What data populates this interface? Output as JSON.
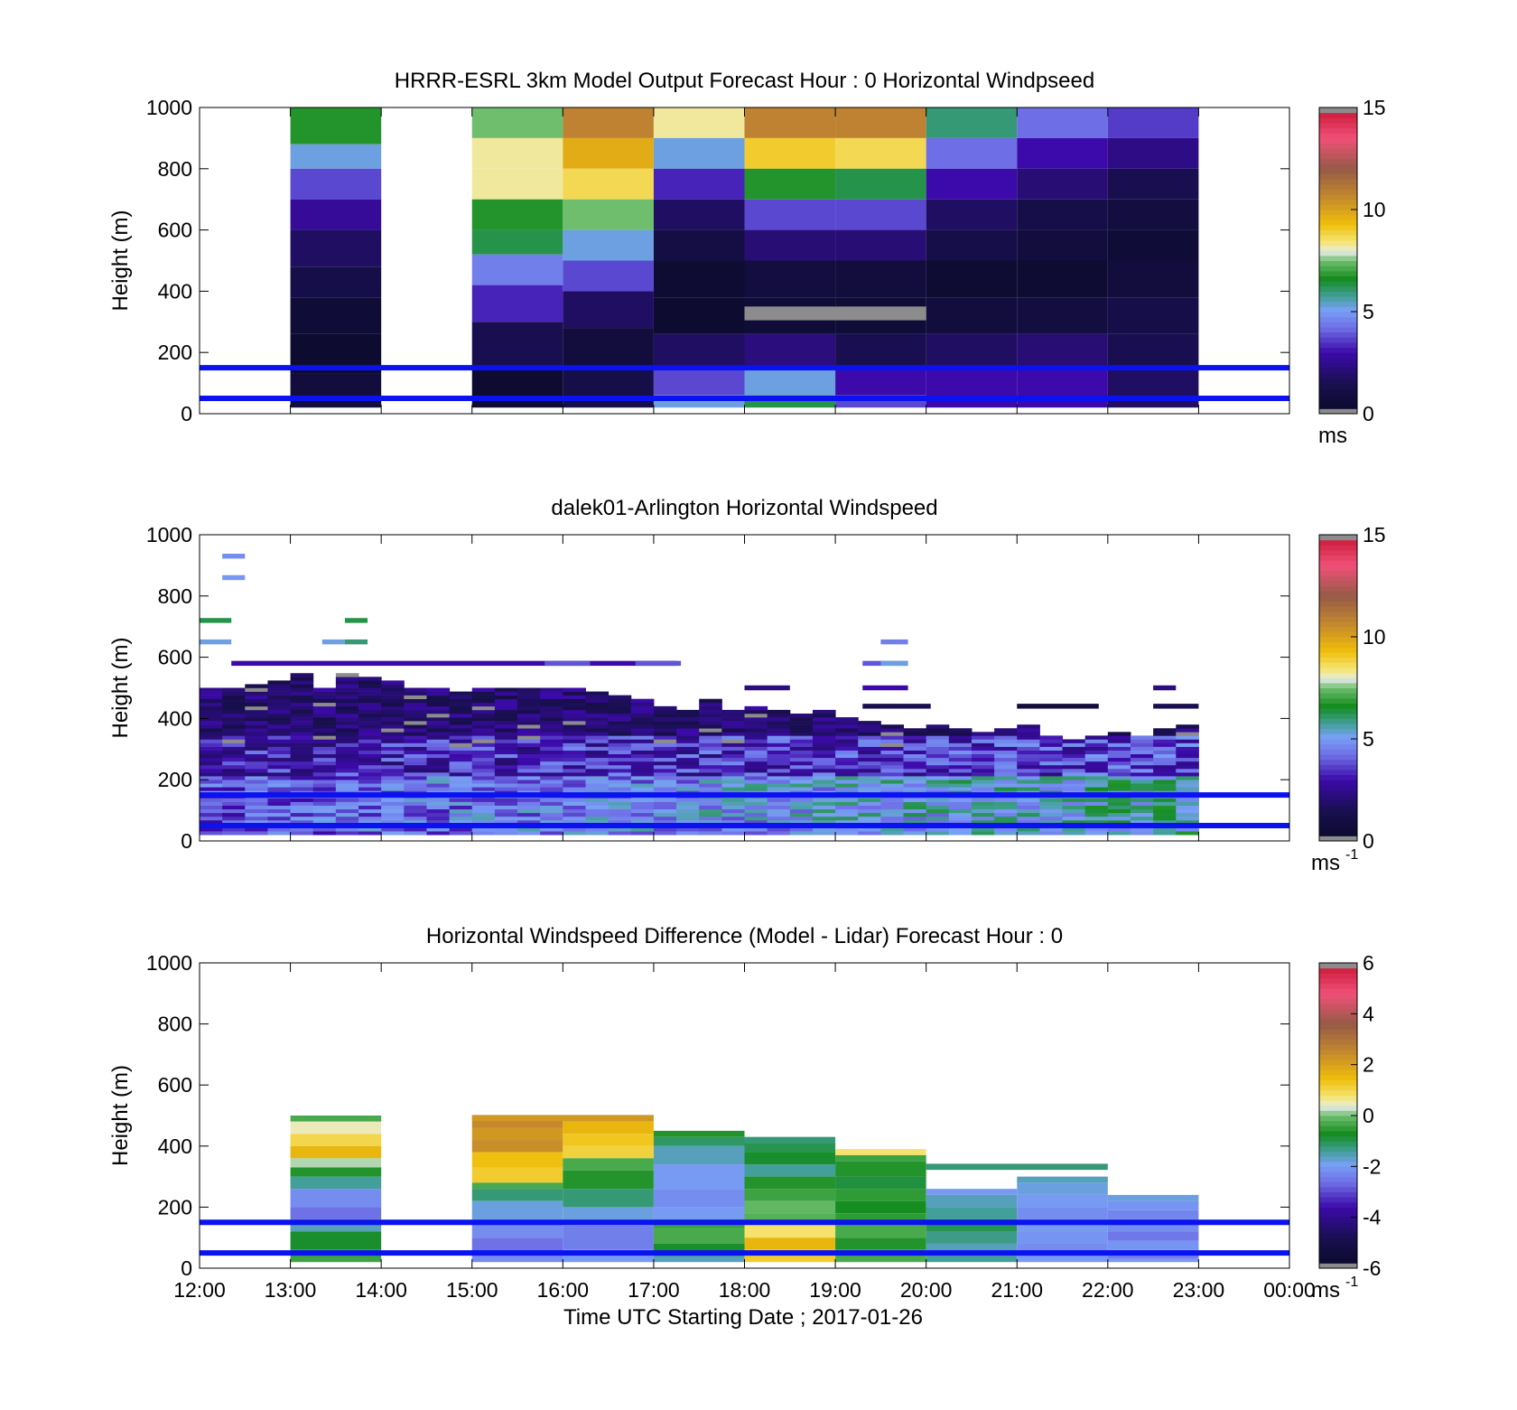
{
  "chart_data": [
    {
      "type": "heatmap",
      "title": "HRRR-ESRL 3km Model Output   Forecast Hour : 0 Horizontal Windpseed",
      "ylabel": "Height (m)",
      "xlabel": "",
      "xlim": [
        "12:00",
        "00:00"
      ],
      "ylim": [
        0,
        1000
      ],
      "yticks": [
        "0",
        "200",
        "400",
        "600",
        "800",
        "1000"
      ],
      "colorbar": {
        "min": 0,
        "max": 15,
        "ticks": [
          "0",
          "5",
          "10",
          "15"
        ],
        "unit": "ms",
        "unit_sup": ""
      },
      "reference_lines_m": [
        50,
        150
      ],
      "hour_columns": [
        {
          "start": 13,
          "top": 1000,
          "bottom": 20,
          "bands": [
            [
              880,
              0.45
            ],
            [
              800,
              0.35
            ],
            [
              700,
              0.25
            ],
            [
              600,
              0.18
            ],
            [
              480,
              0.12
            ],
            [
              380,
              0.08
            ],
            [
              260,
              0.04
            ],
            [
              130,
              0.02
            ],
            [
              20,
              0.05
            ]
          ]
        },
        {
          "start": 15,
          "top": 1000,
          "bottom": 20,
          "bands": [
            [
              900,
              0.5
            ],
            [
              800,
              0.55
            ],
            [
              700,
              0.55
            ],
            [
              600,
              0.45
            ],
            [
              520,
              0.42
            ],
            [
              420,
              0.3
            ],
            [
              300,
              0.22
            ],
            [
              150,
              0.1
            ],
            [
              20,
              0.02
            ]
          ]
        },
        {
          "start": 16,
          "top": 1000,
          "bottom": 20,
          "bands": [
            [
              900,
              0.72
            ],
            [
              800,
              0.65
            ],
            [
              700,
              0.58
            ],
            [
              600,
              0.5
            ],
            [
              500,
              0.35
            ],
            [
              400,
              0.25
            ],
            [
              280,
              0.12
            ],
            [
              150,
              0.05
            ],
            [
              20,
              0.08
            ]
          ]
        },
        {
          "start": 17,
          "top": 1000,
          "bottom": 20,
          "bands": [
            [
              900,
              0.55
            ],
            [
              800,
              0.35
            ],
            [
              700,
              0.22
            ],
            [
              600,
              0.12
            ],
            [
              500,
              0.07
            ],
            [
              380,
              0.03
            ],
            [
              260,
              0.02
            ],
            [
              150,
              0.12
            ],
            [
              60,
              0.25
            ],
            [
              20,
              0.35
            ]
          ]
        },
        {
          "start": 18,
          "top": 1000,
          "bottom": 20,
          "bands": [
            [
              900,
              0.72
            ],
            [
              800,
              0.6
            ],
            [
              700,
              0.45
            ],
            [
              600,
              0.25
            ],
            [
              500,
              0.14
            ],
            [
              380,
              0.06
            ],
            [
              260,
              0.04
            ],
            [
              150,
              0.15
            ],
            [
              60,
              0.35
            ],
            [
              20,
              0.42
            ]
          ]
        },
        {
          "start": 19,
          "top": 1000,
          "bottom": 20,
          "bands": [
            [
              900,
              0.72
            ],
            [
              800,
              0.58
            ],
            [
              700,
              0.42
            ],
            [
              600,
              0.25
            ],
            [
              500,
              0.14
            ],
            [
              380,
              0.05
            ],
            [
              260,
              0.04
            ],
            [
              150,
              0.1
            ],
            [
              60,
              0.2
            ],
            [
              20,
              0.25
            ]
          ]
        },
        {
          "start": 20,
          "top": 1000,
          "bottom": 20,
          "bands": [
            [
              900,
              0.4
            ],
            [
              800,
              0.28
            ],
            [
              700,
              0.2
            ],
            [
              600,
              0.12
            ],
            [
              500,
              0.08
            ],
            [
              380,
              0.03
            ],
            [
              260,
              0.05
            ],
            [
              150,
              0.12
            ],
            [
              20,
              0.2
            ]
          ]
        },
        {
          "start": 21,
          "top": 1000,
          "bottom": 20,
          "bands": [
            [
              900,
              0.28
            ],
            [
              800,
              0.2
            ],
            [
              700,
              0.14
            ],
            [
              600,
              0.08
            ],
            [
              500,
              0.05
            ],
            [
              380,
              0.03
            ],
            [
              260,
              0.06
            ],
            [
              150,
              0.14
            ],
            [
              20,
              0.2
            ]
          ]
        },
        {
          "start": 22,
          "top": 1000,
          "bottom": 20,
          "bands": [
            [
              900,
              0.24
            ],
            [
              800,
              0.16
            ],
            [
              700,
              0.1
            ],
            [
              600,
              0.06
            ],
            [
              500,
              0.04
            ],
            [
              380,
              0.05
            ],
            [
              260,
              0.08
            ],
            [
              150,
              0.1
            ],
            [
              20,
              0.12
            ]
          ]
        }
      ],
      "missing_segments": [
        {
          "start": 18.0,
          "end": 20.0,
          "ylow": 305,
          "yhigh": 350
        }
      ]
    },
    {
      "type": "heatmap",
      "title": "dalek01-Arlington  Horizontal Windspeed",
      "ylabel": "Height (m)",
      "xlabel": "",
      "xlim": [
        "12:00",
        "00:00"
      ],
      "ylim": [
        0,
        1000
      ],
      "yticks": [
        "0",
        "200",
        "400",
        "600",
        "800",
        "1000"
      ],
      "colorbar": {
        "min": 0,
        "max": 15,
        "ticks": [
          "0",
          "5",
          "10",
          "15"
        ],
        "unit": "ms",
        "unit_sup": "-1"
      },
      "reference_lines_m": [
        50,
        150
      ],
      "column_tops_m": [
        500,
        500,
        510,
        520,
        540,
        500,
        540,
        530,
        520,
        500,
        490,
        480,
        500,
        500,
        500,
        490,
        500,
        480,
        470,
        460,
        440,
        420,
        460,
        420,
        430,
        420,
        410,
        420,
        400,
        390,
        380,
        360,
        370,
        360,
        350,
        360,
        370,
        340,
        330,
        340,
        350,
        340,
        360,
        380
      ],
      "sparse_cells": [
        {
          "t0": 12.25,
          "t1": 12.5,
          "y": 930,
          "v": 0.32
        },
        {
          "t0": 12.25,
          "t1": 12.5,
          "y": 860,
          "v": 0.33
        },
        {
          "t0": 12.0,
          "t1": 12.35,
          "y": 720,
          "v": 0.42
        },
        {
          "t0": 12.0,
          "t1": 12.35,
          "y": 650,
          "v": 0.35
        },
        {
          "t0": 13.35,
          "t1": 13.6,
          "y": 650,
          "v": 0.35
        },
        {
          "t0": 13.6,
          "t1": 13.85,
          "y": 720,
          "v": 0.42
        },
        {
          "t0": 13.6,
          "t1": 13.85,
          "y": 650,
          "v": 0.4
        },
        {
          "t0": 12.35,
          "t1": 17.25,
          "y": 580,
          "v": 0.2
        },
        {
          "t0": 15.8,
          "t1": 16.3,
          "y": 580,
          "v": 0.26
        },
        {
          "t0": 16.8,
          "t1": 17.3,
          "y": 580,
          "v": 0.26
        },
        {
          "t0": 18.0,
          "t1": 18.5,
          "y": 500,
          "v": 0.15
        },
        {
          "t0": 19.3,
          "t1": 19.8,
          "y": 580,
          "v": 0.26
        },
        {
          "t0": 19.5,
          "t1": 19.8,
          "y": 650,
          "v": 0.3
        },
        {
          "t0": 19.5,
          "t1": 19.8,
          "y": 580,
          "v": 0.35
        },
        {
          "t0": 19.3,
          "t1": 19.8,
          "y": 500,
          "v": 0.2
        },
        {
          "t0": 19.3,
          "t1": 20.05,
          "y": 440,
          "v": 0.1
        },
        {
          "t0": 21.0,
          "t1": 21.9,
          "y": 440,
          "v": 0.05
        },
        {
          "t0": 22.5,
          "t1": 22.75,
          "y": 500,
          "v": 0.15
        },
        {
          "t0": 22.5,
          "t1": 23.0,
          "y": 440,
          "v": 0.1
        }
      ]
    },
    {
      "type": "heatmap",
      "title": "Horizontal Windspeed Difference (Model - Lidar) Forecast Hour : 0",
      "ylabel": "Height (m)",
      "xlabel": "Time UTC  Starting Date ; 2017-01-26",
      "xticks": [
        "12:00",
        "13:00",
        "14:00",
        "15:00",
        "16:00",
        "17:00",
        "18:00",
        "19:00",
        "20:00",
        "21:00",
        "22:00",
        "23:00",
        "00:00"
      ],
      "ylim": [
        0,
        1000
      ],
      "yticks": [
        "0",
        "200",
        "400",
        "600",
        "800",
        "1000"
      ],
      "colorbar": {
        "min": -6,
        "max": 6,
        "ticks": [
          "-6",
          "-4",
          "-2",
          "0",
          "2",
          "4",
          "6"
        ],
        "unit": "ms",
        "unit_sup": "-1"
      },
      "reference_lines_m": [
        50,
        150
      ],
      "hour_columns": [
        {
          "start": 13,
          "top": 500,
          "bottom": 20,
          "bands": [
            [
              480,
              -0.3
            ],
            [
              440,
              0.5
            ],
            [
              400,
              1.0
            ],
            [
              360,
              1.6
            ],
            [
              330,
              0.2
            ],
            [
              300,
              -0.6
            ],
            [
              260,
              -1.4
            ],
            [
              200,
              -2.2
            ],
            [
              160,
              -2.6
            ],
            [
              120,
              -1.6
            ],
            [
              60,
              -0.8
            ],
            [
              20,
              -0.4
            ]
          ]
        },
        {
          "start": 15,
          "top": 500,
          "bottom": 20,
          "bands": [
            [
              460,
              2.5
            ],
            [
              420,
              2.2
            ],
            [
              380,
              2.4
            ],
            [
              330,
              1.4
            ],
            [
              280,
              1.2
            ],
            [
              260,
              -0.3
            ],
            [
              220,
              -1.2
            ],
            [
              160,
              -1.8
            ],
            [
              100,
              -2.2
            ],
            [
              40,
              -2.6
            ],
            [
              20,
              -2.2
            ]
          ]
        },
        {
          "start": 16,
          "top": 500,
          "bottom": 20,
          "bands": [
            [
              480,
              2.2
            ],
            [
              440,
              1.6
            ],
            [
              400,
              1.3
            ],
            [
              360,
              1.1
            ],
            [
              320,
              -0.3
            ],
            [
              260,
              -0.6
            ],
            [
              200,
              -1.2
            ],
            [
              140,
              -1.8
            ],
            [
              60,
              -2.4
            ],
            [
              20,
              -2.0
            ]
          ]
        },
        {
          "start": 17,
          "top": 450,
          "bottom": 20,
          "bands": [
            [
              430,
              -0.6
            ],
            [
              400,
              -1.1
            ],
            [
              340,
              -1.6
            ],
            [
              260,
              -2.0
            ],
            [
              200,
              -2.2
            ],
            [
              160,
              -2.0
            ],
            [
              130,
              -0.4
            ],
            [
              80,
              -0.3
            ],
            [
              40,
              -0.8
            ],
            [
              20,
              -1.6
            ]
          ]
        },
        {
          "start": 18,
          "top": 430,
          "bottom": 20,
          "bands": [
            [
              410,
              -1.2
            ],
            [
              380,
              -1.0
            ],
            [
              340,
              -0.8
            ],
            [
              300,
              -1.4
            ],
            [
              260,
              -0.6
            ],
            [
              220,
              -0.4
            ],
            [
              180,
              -0.1
            ],
            [
              150,
              -0.2
            ],
            [
              100,
              0.8
            ],
            [
              60,
              1.6
            ],
            [
              20,
              1.2
            ]
          ]
        },
        {
          "start": 19,
          "top": 390,
          "bottom": 20,
          "bands": [
            [
              370,
              0.8
            ],
            [
              350,
              -0.4
            ],
            [
              300,
              -0.6
            ],
            [
              260,
              -0.9
            ],
            [
              220,
              -0.5
            ],
            [
              180,
              -0.7
            ],
            [
              140,
              -0.5
            ],
            [
              100,
              -0.3
            ],
            [
              60,
              -0.6
            ],
            [
              20,
              -0.3
            ]
          ]
        },
        {
          "start": 20,
          "top": 260,
          "bottom": 20,
          "bands": [
            [
              240,
              -2.0
            ],
            [
              200,
              -1.6
            ],
            [
              160,
              -1.4
            ],
            [
              120,
              -1.0
            ],
            [
              80,
              -1.3
            ],
            [
              40,
              -1.6
            ],
            [
              20,
              -1.4
            ]
          ]
        },
        {
          "start": 21,
          "top": 300,
          "bottom": 20,
          "bands": [
            [
              280,
              -1.6
            ],
            [
              240,
              -1.8
            ],
            [
              200,
              -2.0
            ],
            [
              160,
              -2.2
            ],
            [
              120,
              -2.0
            ],
            [
              80,
              -2.1
            ],
            [
              40,
              -2.2
            ],
            [
              20,
              -2.0
            ]
          ]
        },
        {
          "start": 22,
          "top": 240,
          "bottom": 20,
          "bands": [
            [
              220,
              -1.8
            ],
            [
              190,
              -2.1
            ],
            [
              160,
              -2.3
            ],
            [
              120,
              -2.2
            ],
            [
              90,
              -2.5
            ],
            [
              60,
              -2.1
            ],
            [
              30,
              -2.4
            ],
            [
              20,
              -2.0
            ]
          ]
        }
      ],
      "thin_segments": [
        {
          "start": 15.0,
          "end": 17.0,
          "y": 490,
          "v": 2.2
        },
        {
          "start": 20.0,
          "end": 22.0,
          "y": 330,
          "v": -1.2
        }
      ]
    }
  ]
}
